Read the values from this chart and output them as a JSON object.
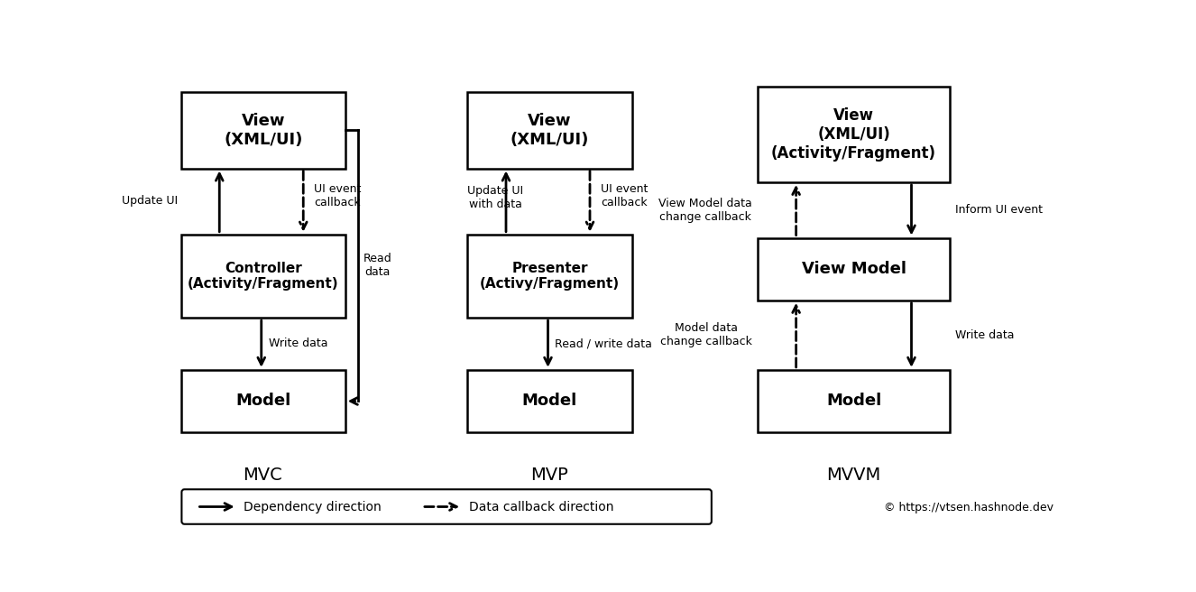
{
  "bg_color": "#ffffff",
  "box_edge_color": "#000000",
  "text_color": "#000000",
  "mvc_label": "MVC",
  "mvp_label": "MVP",
  "mvvm_label": "MVVM",
  "legend_solid_label": "Dependency direction",
  "legend_dashed_label": "Data callback direction",
  "copyright": "© https://vtsen.hashnode.dev",
  "mvc_view_text": "View\n(XML/UI)",
  "mvc_ctrl_text": "Controller\n(Activity/Fragment)",
  "mvc_model_text": "Model",
  "mvp_view_text": "View\n(XML/UI)",
  "mvp_pres_text": "Presenter\n(Activy/Fragment)",
  "mvp_model_text": "Model",
  "mvvm_view_text": "View\n(XML/UI)\n(Activity/Fragment)",
  "mvvm_vm_text": "View Model",
  "mvvm_model_text": "Model"
}
